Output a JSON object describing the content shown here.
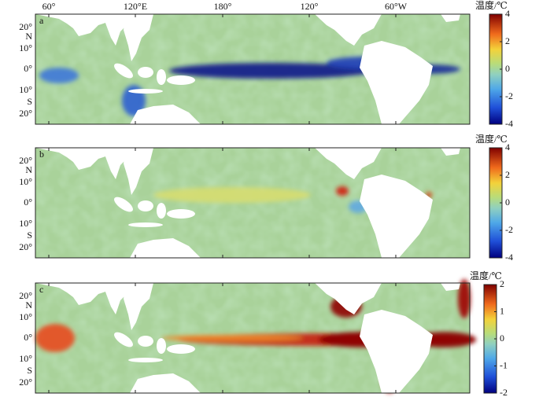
{
  "longitude_labels": [
    "60°",
    "120°E",
    "180°",
    "120°",
    "60°W"
  ],
  "latitude_labels": [
    "20°",
    "N",
    "10°",
    "0°",
    "10°",
    "S",
    "20°"
  ],
  "panels": [
    {
      "label": "a",
      "colorbar": {
        "title": "温度/℃",
        "range": [
          -4,
          4
        ],
        "ticks": [
          4,
          2,
          0,
          -2,
          -4
        ]
      }
    },
    {
      "label": "b",
      "colorbar": {
        "title": "温度/℃",
        "range": [
          -4,
          4
        ],
        "ticks": [
          4,
          2,
          0,
          -2,
          -4
        ]
      }
    },
    {
      "label": "c",
      "colorbar": {
        "title": "温度/℃",
        "range": [
          -2,
          2
        ],
        "ticks": [
          2,
          1,
          0,
          -1,
          -2
        ]
      }
    }
  ]
}
